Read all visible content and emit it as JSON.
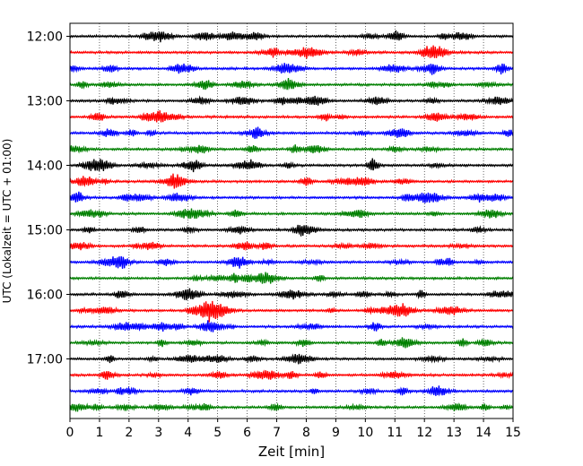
{
  "chart_data": {
    "type": "line",
    "title": "",
    "xlabel": "Zeit  [min]",
    "ylabel": "UTC (Lokalzeit = UTC + 01:00)",
    "xlim": [
      0,
      15
    ],
    "x_ticks": [
      0,
      1,
      2,
      3,
      4,
      5,
      6,
      7,
      8,
      9,
      10,
      11,
      12,
      13,
      14,
      15
    ],
    "y_tick_labels": [
      "12:00",
      "13:00",
      "14:00",
      "15:00",
      "16:00",
      "17:00"
    ],
    "grid": "vertical dotted lines at each minute",
    "traces_start": "12:00",
    "trace_interval_minutes": 15,
    "trace_count": 24,
    "colors": [
      "#000000",
      "#ff0000",
      "#0000ff",
      "#008000"
    ],
    "series_description": "Helicorder seismic trace, one 15-minute line per row, colors cycle black, red, blue, green"
  }
}
